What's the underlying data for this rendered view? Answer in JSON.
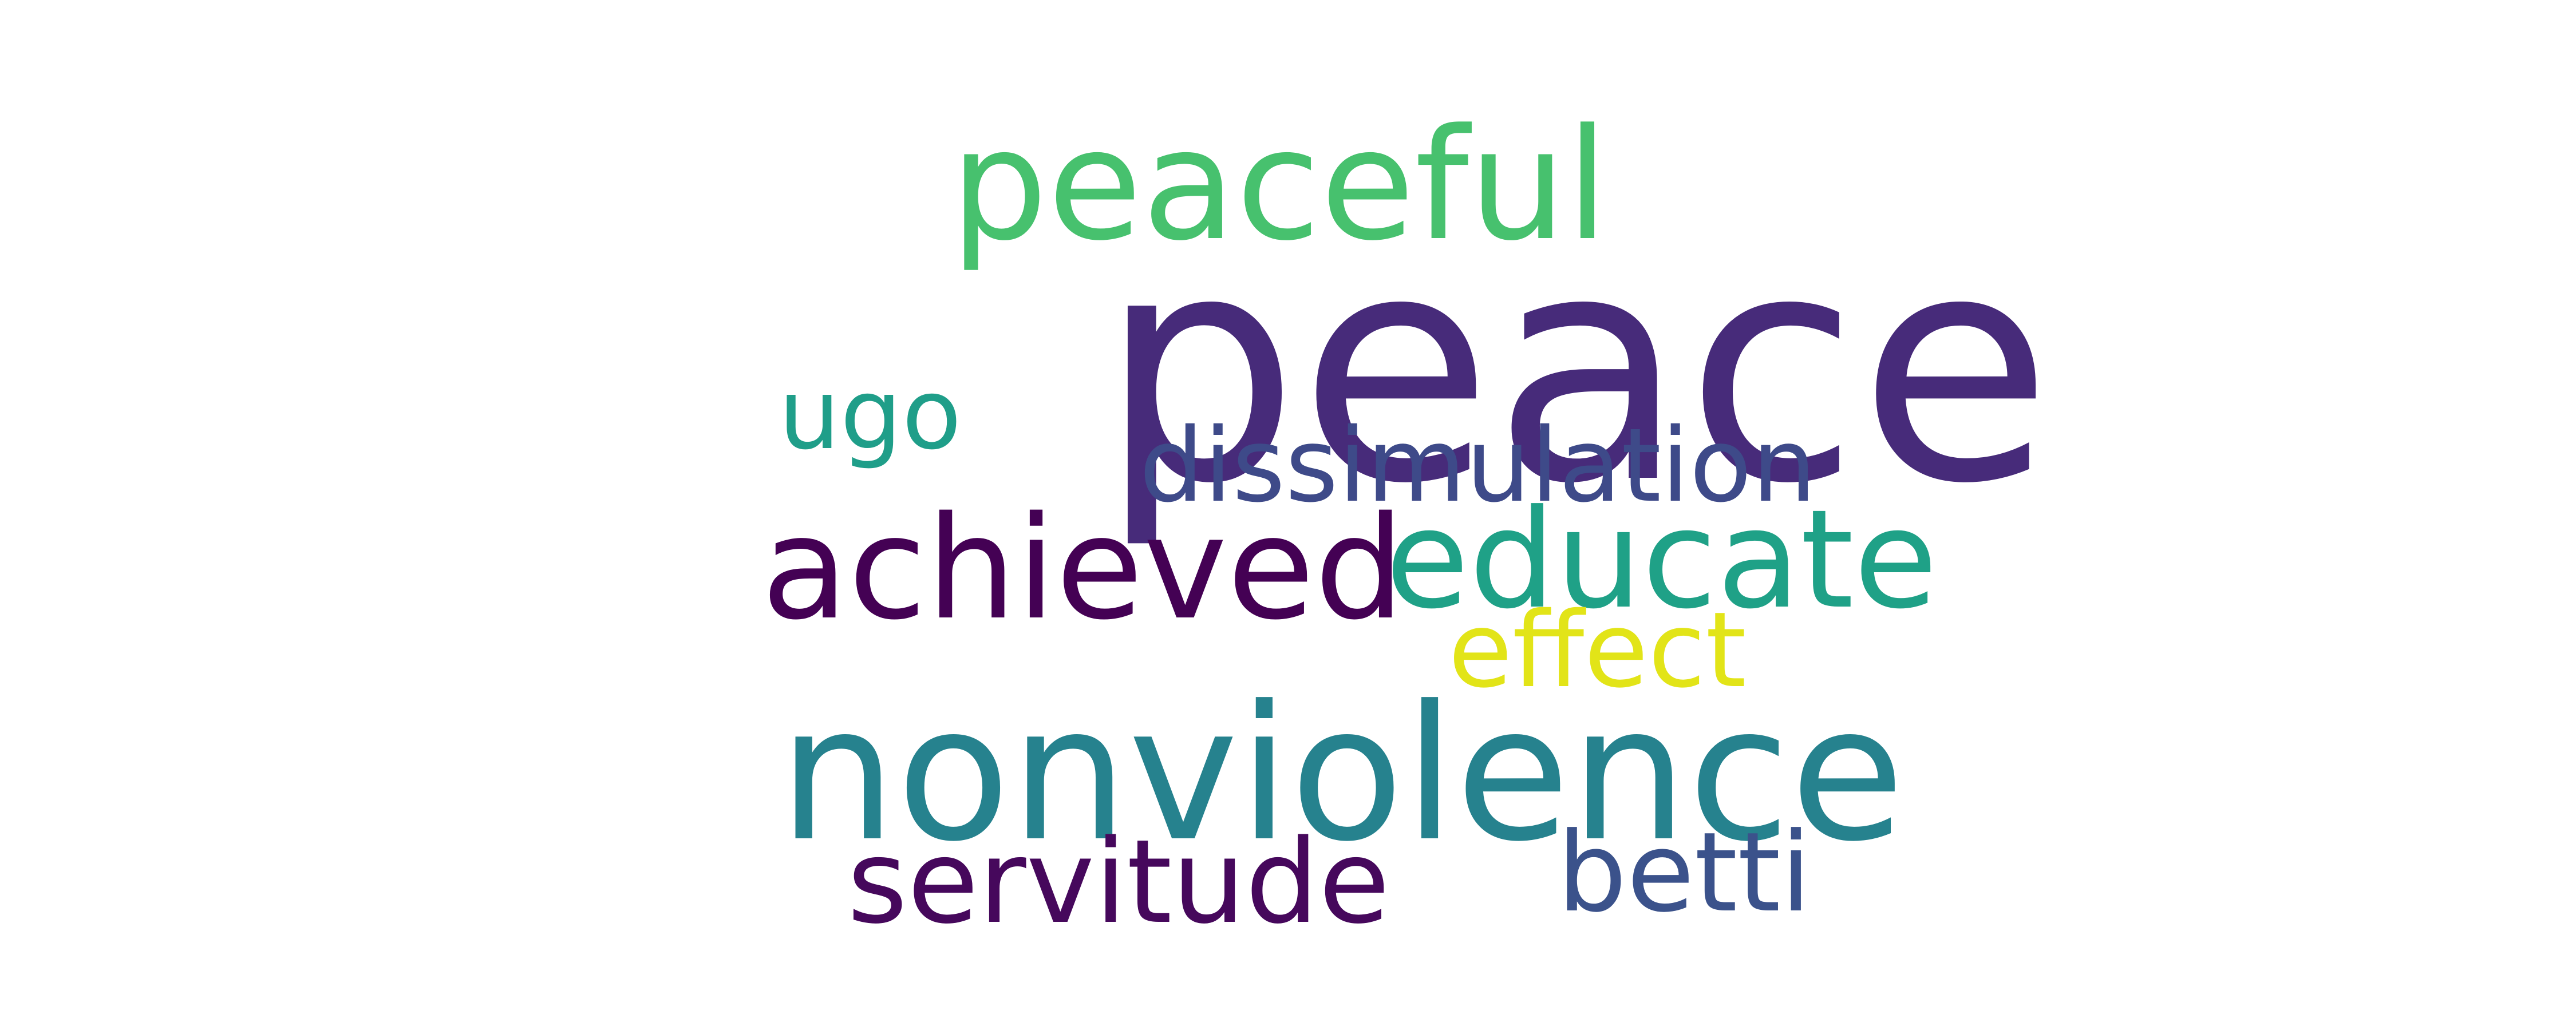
{
  "words": {
    "peaceful": {
      "text": "peaceful",
      "color": "#47c16e"
    },
    "peace": {
      "text": "peace",
      "color": "#472b7a"
    },
    "ugo": {
      "text": "ugo",
      "color": "#1f9e89"
    },
    "dissimulation": {
      "text": "dissimulation",
      "color": "#3e4a89"
    },
    "achieved": {
      "text": "achieved",
      "color": "#440154"
    },
    "educate": {
      "text": "educate",
      "color": "#1fa187"
    },
    "effect": {
      "text": "effect",
      "color": "#e2e418"
    },
    "nonviolence": {
      "text": "nonviolence",
      "color": "#26828e"
    },
    "servitude": {
      "text": "servitude",
      "color": "#46085c"
    },
    "betti": {
      "text": "betti",
      "color": "#3b528b"
    }
  },
  "background": "#ffffff"
}
